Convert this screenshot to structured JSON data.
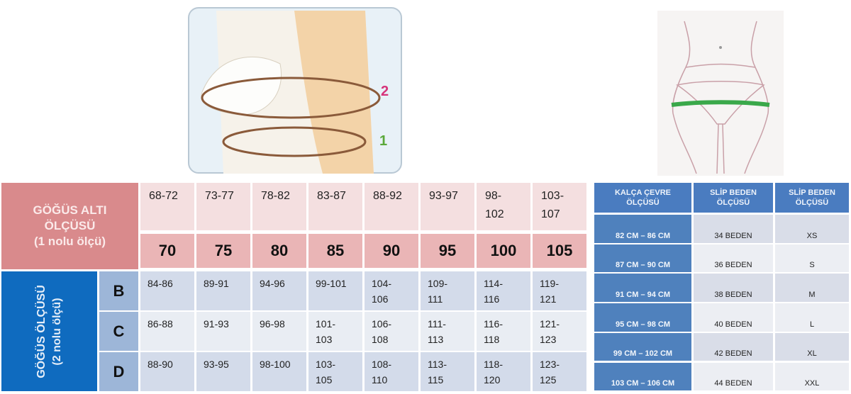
{
  "bra_table": {
    "underbust_header": [
      "GÖĞÜS ALTI",
      "ÖLÇÜSÜ",
      "(1 nolu ölçü)"
    ],
    "bust_header": [
      "GÖĞÜS ÖLÇÜSÜ",
      "(2 nolu ölçü)"
    ],
    "underbust_ranges": [
      [
        "68-72"
      ],
      [
        "73-77"
      ],
      [
        "78-82"
      ],
      [
        "83-87"
      ],
      [
        "88-92"
      ],
      [
        "93-97"
      ],
      [
        "98-",
        "102"
      ],
      [
        "103-",
        "107"
      ]
    ],
    "band_sizes": [
      "70",
      "75",
      "80",
      "85",
      "90",
      "95",
      "100",
      "105"
    ],
    "cups": [
      {
        "letter": "B",
        "values": [
          [
            "84-86"
          ],
          [
            "89-91"
          ],
          [
            "94-96"
          ],
          [
            "99-101"
          ],
          [
            "104-",
            "106"
          ],
          [
            "109-",
            "111"
          ],
          [
            "114-",
            "116"
          ],
          [
            "119-",
            "121"
          ]
        ]
      },
      {
        "letter": "C",
        "values": [
          [
            "86-88"
          ],
          [
            "91-93"
          ],
          [
            "96-98"
          ],
          [
            "101-",
            "103"
          ],
          [
            "106-",
            "108"
          ],
          [
            "111-",
            "113"
          ],
          [
            "116-",
            "118"
          ],
          [
            "121-",
            "123"
          ]
        ]
      },
      {
        "letter": "D",
        "values": [
          [
            "88-90"
          ],
          [
            "93-95"
          ],
          [
            "98-100"
          ],
          [
            "103-",
            "105"
          ],
          [
            "108-",
            "110"
          ],
          [
            "113-",
            "115"
          ],
          [
            "118-",
            "120"
          ],
          [
            "123-",
            "125"
          ]
        ]
      }
    ]
  },
  "brief_table": {
    "headers": [
      [
        "KALÇA ÇEVRE",
        "ÖLÇÜSÜ"
      ],
      [
        "SLİP BEDEN",
        "ÖLÇÜSÜ"
      ],
      [
        "SLİP BEDEN",
        "ÖLÇÜSÜ"
      ]
    ],
    "rows": [
      [
        "82 CM – 86 CM",
        "34 BEDEN",
        "XS"
      ],
      [
        "87 CM – 90 CM",
        "36 BEDEN",
        "S"
      ],
      [
        "91 CM – 94 CM",
        "38 BEDEN",
        "M"
      ],
      [
        "95 CM – 98 CM",
        "40 BEDEN",
        "L"
      ],
      [
        "99 CM – 102 CM",
        "42 BEDEN",
        "XL"
      ],
      [
        "103 CM – 106 CM",
        "44 BEDEN",
        "XXL"
      ]
    ]
  },
  "illustrations": {
    "bust_labels": [
      "2",
      "1"
    ],
    "colors": {
      "label_2": "#d6337a",
      "label_1": "#5aa83a",
      "hip_band": "#3aa84a",
      "tape": "#8a5a3a"
    }
  }
}
